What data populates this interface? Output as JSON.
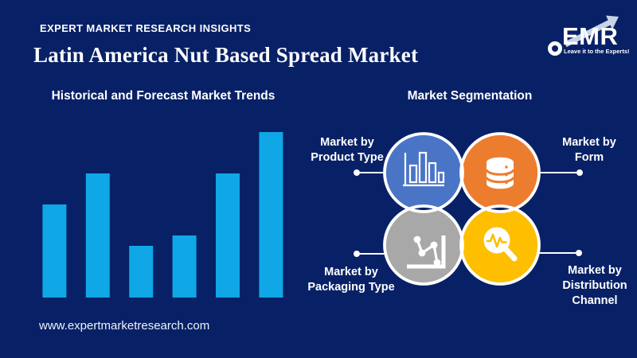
{
  "colors": {
    "background": "#082166",
    "bar_blue": "#0fa7e6",
    "venn_blue": "#4a75c6",
    "venn_orange": "#ec7d2e",
    "venn_gray": "#a8a8a8",
    "venn_yellow": "#fdbf00",
    "text": "#ffffff"
  },
  "header": {
    "tagline": "EXPERT MARKET RESEARCH INSIGHTS",
    "title": "Latin America Nut Based Spread Market"
  },
  "logo": {
    "text": "EMR",
    "tagline": "Leave it to the Experts!"
  },
  "left_panel": {
    "heading": "Historical and Forecast Market Trends"
  },
  "chart_data": {
    "type": "bar",
    "title": "Historical and Forecast Market Trends",
    "categories": [
      "",
      "",
      "",
      "",
      "",
      ""
    ],
    "values": [
      117,
      156,
      65,
      78,
      156,
      208
    ],
    "value_note": "relative bar heights in px; chart is decorative with no axes, ticks or data labels shown",
    "xlabel": "",
    "ylabel": "",
    "grid": false,
    "legend": false,
    "bar_color": "#0fa7e6"
  },
  "right_panel": {
    "heading": "Market Segmentation",
    "segments": [
      {
        "id": "product-type",
        "line1": "Market by",
        "line2": "Product Type",
        "color": "#4a75c6",
        "icon": "bar-chart-icon"
      },
      {
        "id": "form",
        "line1": "Market by",
        "line2": "Form",
        "color": "#ec7d2e",
        "icon": "database-icon"
      },
      {
        "id": "packaging-type",
        "line1": "Market by",
        "line2": "Packaging Type",
        "color": "#a8a8a8",
        "icon": "scatter-line-chart-icon"
      },
      {
        "id": "distribution-channel",
        "line1": "Market by",
        "line2": "Distribution",
        "line3": "Channel",
        "color": "#fdbf00",
        "icon": "magnifier-pulse-icon"
      }
    ]
  },
  "footer": {
    "url": "www.expertmarketresearch.com"
  }
}
